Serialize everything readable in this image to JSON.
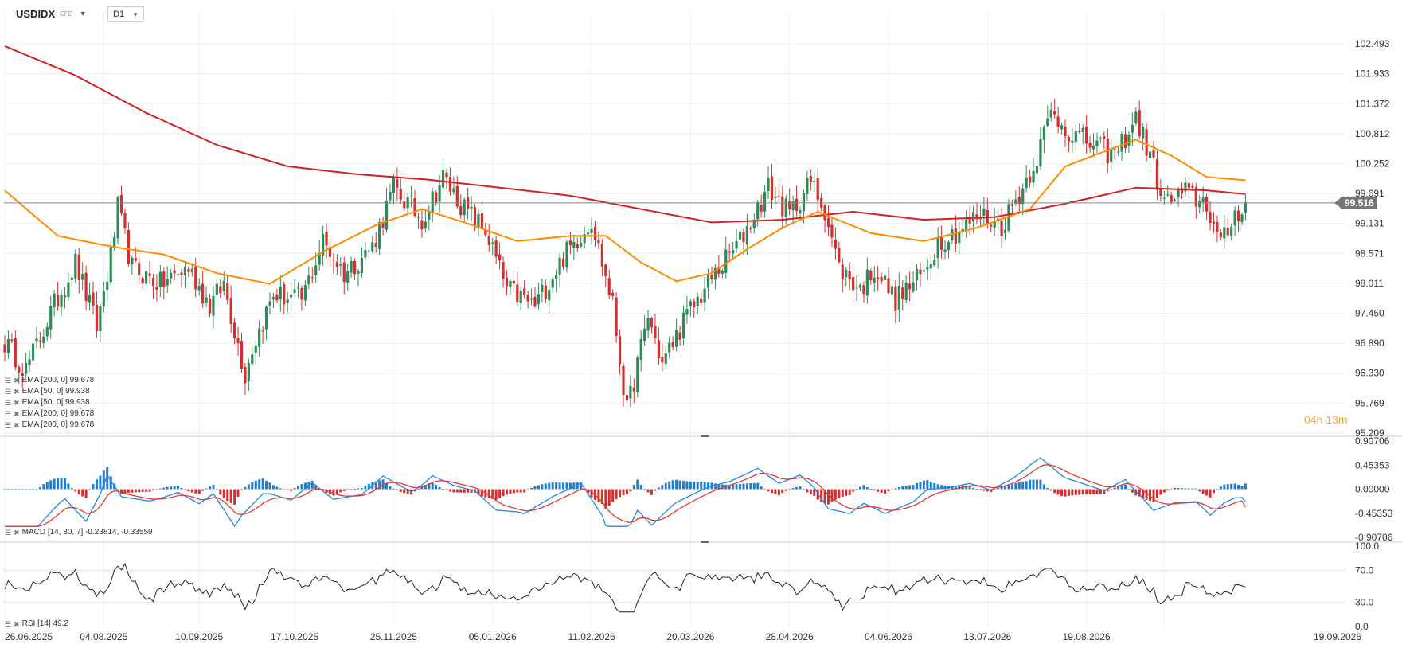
{
  "header": {
    "symbol": "USDIDX",
    "symbol_sub": "CFD",
    "timeframe": "D1"
  },
  "countdown": {
    "hours": "04",
    "h": "h",
    "minutes": "13",
    "m": "m"
  },
  "legend_main": [
    {
      "label": "EMA [200, 0] 99.678"
    },
    {
      "label": "EMA [50, 0] 99.938"
    },
    {
      "label": "EMA [50, 0] 99.938"
    },
    {
      "label": "EMA [200, 0] 99.678"
    },
    {
      "label": "EMA [200, 0] 99.678"
    }
  ],
  "legend_macd": "MACD [14, 30, 7] -0.23814, -0.33559",
  "legend_rsi": "RSI [14] 49.2",
  "colors": {
    "up": "#2e8b57",
    "down": "#d32f2f",
    "ema200": "#d32020",
    "ema50": "#ff8c00",
    "macd_line": "#1e88e5",
    "signal_line": "#e53935",
    "hist_pos": "#1e7fd0",
    "hist_neg": "#d32f2f",
    "rsi": "#222222",
    "price_tag": "#777777"
  },
  "chart_data": [
    {
      "type": "candlestick",
      "symbol": "USDIDX",
      "y_ticks": [
        "102.493",
        "101.933",
        "101.372",
        "100.812",
        "100.252",
        "99.691",
        "99.131",
        "98.571",
        "98.011",
        "97.450",
        "96.890",
        "96.330",
        "95.769",
        "95.209"
      ],
      "ylim": [
        95.209,
        102.493
      ],
      "x_ticks": [
        "26.06.2025",
        "04.08.2025",
        "10.09.2025",
        "17.10.2025",
        "25.11.2025",
        "05.01.2026",
        "11.02.2026",
        "20.03.2026",
        "28.04.2026",
        "04.06.2026",
        "13.07.2026",
        "19.08.2026",
        "19.09.2026"
      ],
      "last_price": "99.516",
      "close_anchors": [
        [
          0,
          96.9
        ],
        [
          6,
          96.4
        ],
        [
          14,
          97.6
        ],
        [
          20,
          98.4
        ],
        [
          26,
          97.2
        ],
        [
          30,
          98.5
        ],
        [
          32,
          99.4
        ],
        [
          36,
          98.3
        ],
        [
          44,
          98.0
        ],
        [
          52,
          98.3
        ],
        [
          58,
          97.6
        ],
        [
          62,
          98.0
        ],
        [
          68,
          96.3
        ],
        [
          70,
          96.8
        ],
        [
          76,
          97.8
        ],
        [
          84,
          97.7
        ],
        [
          90,
          98.8
        ],
        [
          96,
          98.2
        ],
        [
          104,
          98.7
        ],
        [
          110,
          99.8
        ],
        [
          118,
          99.2
        ],
        [
          124,
          100.0
        ],
        [
          130,
          99.4
        ],
        [
          136,
          99.0
        ],
        [
          142,
          97.9
        ],
        [
          150,
          97.6
        ],
        [
          158,
          98.5
        ],
        [
          166,
          99.2
        ],
        [
          172,
          97.6
        ],
        [
          176,
          95.6
        ],
        [
          182,
          97.4
        ],
        [
          186,
          96.5
        ],
        [
          192,
          97.3
        ],
        [
          200,
          98.1
        ],
        [
          208,
          98.8
        ],
        [
          216,
          99.8
        ],
        [
          222,
          99.3
        ],
        [
          228,
          99.9
        ],
        [
          232,
          99.4
        ],
        [
          236,
          98.3
        ],
        [
          242,
          97.9
        ],
        [
          246,
          98.3
        ],
        [
          252,
          97.7
        ],
        [
          260,
          98.2
        ],
        [
          264,
          98.8
        ],
        [
          270,
          99.0
        ],
        [
          276,
          99.3
        ],
        [
          282,
          99.1
        ],
        [
          288,
          99.8
        ],
        [
          292,
          100.4
        ],
        [
          296,
          101.2
        ],
        [
          302,
          100.8
        ],
        [
          308,
          100.6
        ],
        [
          314,
          100.4
        ],
        [
          320,
          101.1
        ],
        [
          324,
          100.4
        ],
        [
          328,
          99.5
        ],
        [
          334,
          99.7
        ],
        [
          340,
          99.5
        ],
        [
          344,
          98.7
        ],
        [
          348,
          99.3
        ],
        [
          351,
          99.53
        ]
      ],
      "ema200_anchors": [
        [
          0,
          102.45
        ],
        [
          20,
          101.9
        ],
        [
          40,
          101.2
        ],
        [
          60,
          100.6
        ],
        [
          80,
          100.2
        ],
        [
          100,
          100.05
        ],
        [
          120,
          99.95
        ],
        [
          140,
          99.8
        ],
        [
          160,
          99.65
        ],
        [
          180,
          99.4
        ],
        [
          200,
          99.15
        ],
        [
          220,
          99.2
        ],
        [
          240,
          99.35
        ],
        [
          260,
          99.2
        ],
        [
          280,
          99.25
        ],
        [
          300,
          99.5
        ],
        [
          320,
          99.8
        ],
        [
          340,
          99.75
        ],
        [
          351,
          99.68
        ]
      ],
      "ema50_anchors": [
        [
          0,
          99.75
        ],
        [
          15,
          98.9
        ],
        [
          30,
          98.7
        ],
        [
          45,
          98.55
        ],
        [
          60,
          98.2
        ],
        [
          75,
          98.0
        ],
        [
          90,
          98.6
        ],
        [
          105,
          99.1
        ],
        [
          118,
          99.4
        ],
        [
          130,
          99.15
        ],
        [
          145,
          98.8
        ],
        [
          160,
          98.9
        ],
        [
          170,
          98.9
        ],
        [
          180,
          98.4
        ],
        [
          190,
          98.05
        ],
        [
          200,
          98.2
        ],
        [
          210,
          98.65
        ],
        [
          220,
          99.05
        ],
        [
          230,
          99.35
        ],
        [
          245,
          98.95
        ],
        [
          260,
          98.8
        ],
        [
          275,
          99.05
        ],
        [
          290,
          99.4
        ],
        [
          300,
          100.2
        ],
        [
          310,
          100.45
        ],
        [
          320,
          100.7
        ],
        [
          330,
          100.4
        ],
        [
          340,
          100.0
        ],
        [
          351,
          99.94
        ]
      ]
    },
    {
      "type": "line",
      "name": "MACD [14, 30, 7]",
      "y_ticks": [
        "0.90706",
        "0.45353",
        "0.00000",
        "-0.45353",
        "-0.90706"
      ],
      "ylim": [
        -0.90706,
        0.90706
      ],
      "macd_value": -0.23814,
      "signal_value": -0.33559
    },
    {
      "type": "line",
      "name": "RSI [14]",
      "y_ticks": [
        "100.0",
        "70.0",
        "30.0",
        "0.0"
      ],
      "ylim": [
        0,
        100
      ],
      "last_value": 49.2
    }
  ]
}
